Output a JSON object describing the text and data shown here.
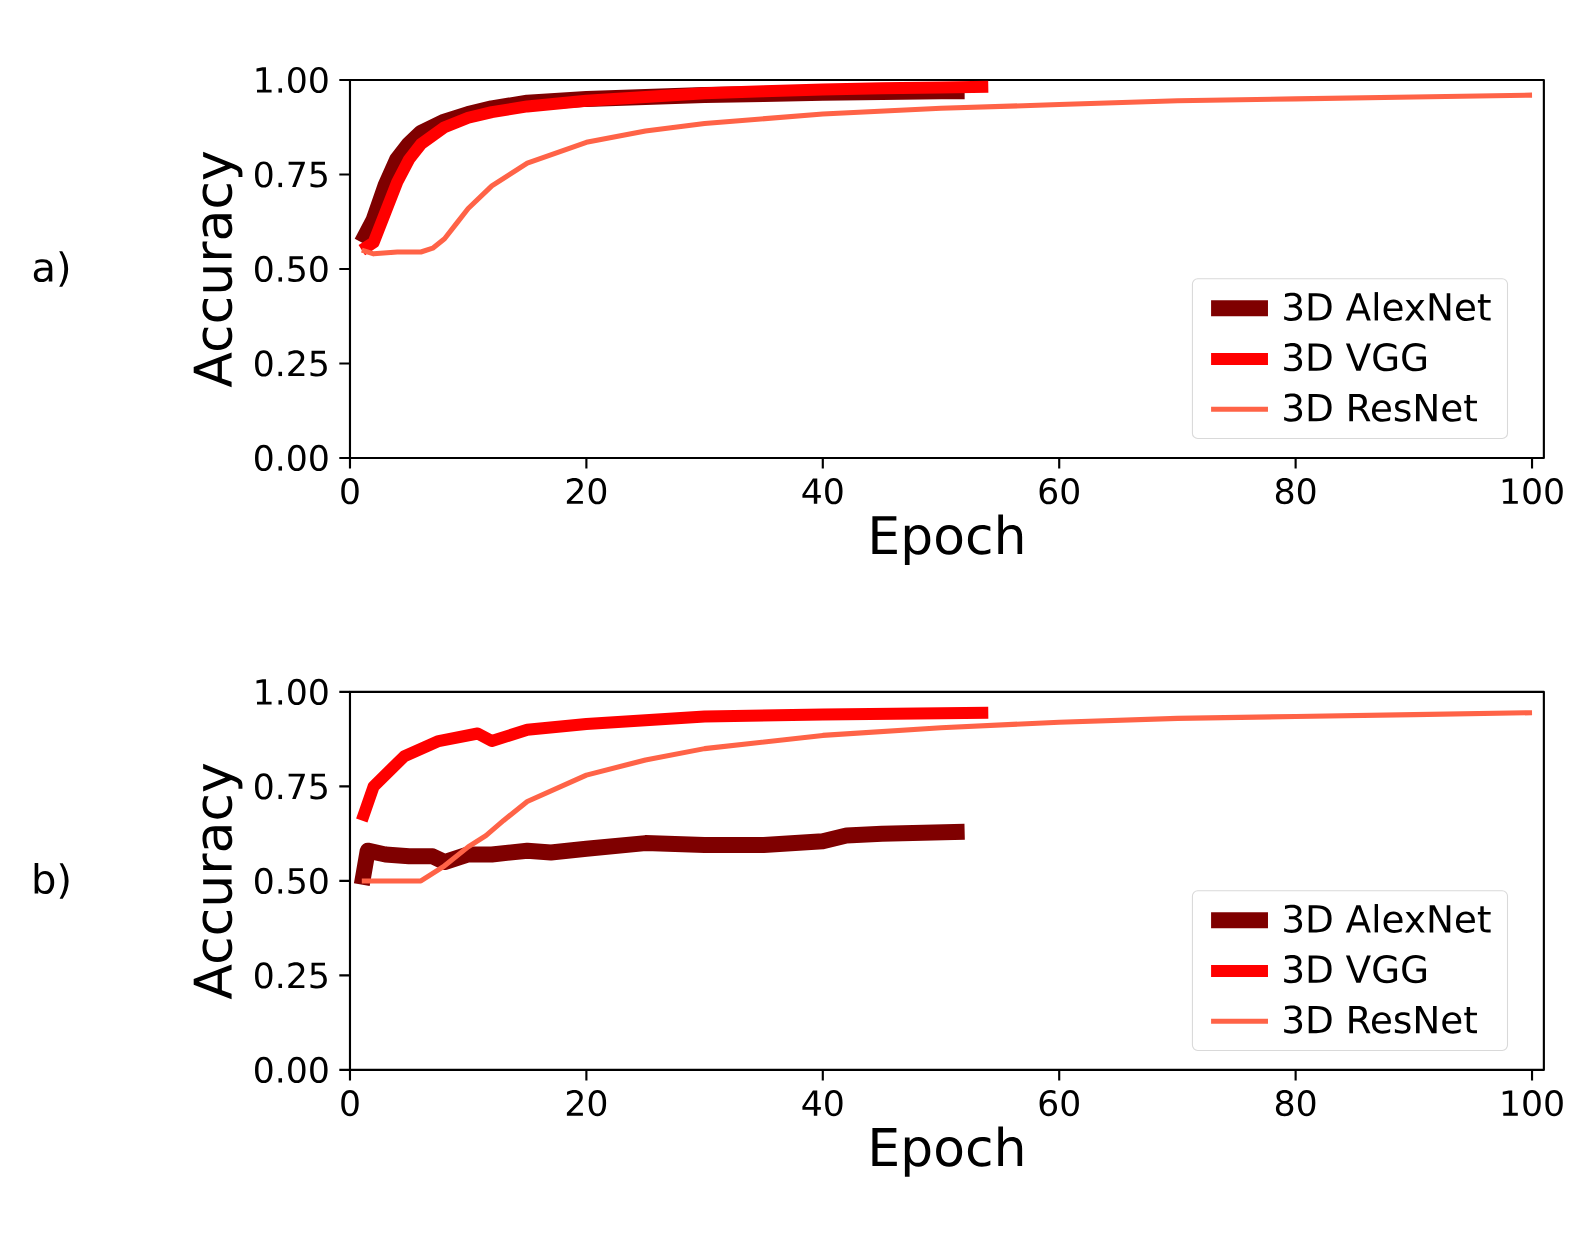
{
  "chart_data": [
    {
      "type": "line",
      "xlabel": "Epoch",
      "ylabel": "Accuracy",
      "annotations": [
        "a)"
      ],
      "xlim": [
        0,
        101
      ],
      "ylim": [
        0,
        1
      ],
      "xticks": [
        0,
        20,
        40,
        60,
        80,
        100
      ],
      "yticks": [
        {
          "value": 0,
          "label": "0.00"
        },
        {
          "value": 0.25,
          "label": "0.25"
        },
        {
          "value": 0.5,
          "label": "0.50"
        },
        {
          "value": 0.75,
          "label": "0.75"
        },
        {
          "value": 1,
          "label": "1.00"
        }
      ],
      "legend": "bottom right",
      "grid": false,
      "marker": "none",
      "line_style": "solid",
      "series": [
        {
          "name": "3D AlexNet",
          "color": "#7f0000",
          "x": [
            1,
            2,
            3,
            4,
            5,
            6,
            8,
            10,
            12,
            15,
            20,
            25,
            30,
            35,
            40,
            45,
            50,
            52
          ],
          "values": [
            0.57,
            0.63,
            0.72,
            0.79,
            0.83,
            0.86,
            0.89,
            0.91,
            0.925,
            0.94,
            0.95,
            0.955,
            0.96,
            0.963,
            0.966,
            0.968,
            0.97,
            0.97
          ]
        },
        {
          "name": "3D VGG",
          "color": "#ff0000",
          "x": [
            1,
            2,
            3,
            4,
            5,
            6,
            8,
            10,
            12,
            15,
            20,
            25,
            30,
            35,
            40,
            45,
            50,
            54
          ],
          "values": [
            0.55,
            0.57,
            0.65,
            0.73,
            0.79,
            0.83,
            0.875,
            0.9,
            0.915,
            0.93,
            0.945,
            0.955,
            0.965,
            0.97,
            0.975,
            0.978,
            0.98,
            0.982
          ]
        },
        {
          "name": "3D ResNet",
          "color": "#ff6347",
          "x": [
            1,
            2,
            4,
            6,
            7,
            8,
            9,
            10,
            12,
            15,
            20,
            25,
            30,
            40,
            50,
            60,
            70,
            80,
            90,
            100
          ],
          "values": [
            0.55,
            0.54,
            0.545,
            0.545,
            0.555,
            0.58,
            0.62,
            0.66,
            0.72,
            0.78,
            0.835,
            0.865,
            0.885,
            0.91,
            0.925,
            0.935,
            0.945,
            0.95,
            0.955,
            0.96
          ]
        }
      ]
    },
    {
      "type": "line",
      "xlabel": "Epoch",
      "ylabel": "Accuracy",
      "annotations": [
        "b)"
      ],
      "xlim": [
        0,
        101
      ],
      "ylim": [
        0,
        1
      ],
      "xticks": [
        0,
        20,
        40,
        60,
        80,
        100
      ],
      "yticks": [
        {
          "value": 0,
          "label": "0.00"
        },
        {
          "value": 0.25,
          "label": "0.25"
        },
        {
          "value": 0.5,
          "label": "0.50"
        },
        {
          "value": 0.75,
          "label": "0.75"
        },
        {
          "value": 1,
          "label": "1.00"
        }
      ],
      "legend": "bottom right",
      "grid": false,
      "marker": "none",
      "line_style": "solid",
      "series": [
        {
          "name": "3D AlexNet",
          "color": "#7f0000",
          "x": [
            1,
            1.5,
            3,
            5,
            7,
            8,
            10,
            12,
            15,
            17,
            20,
            25,
            30,
            35,
            40,
            42,
            45,
            52
          ],
          "values": [
            0.49,
            0.58,
            0.57,
            0.565,
            0.565,
            0.55,
            0.57,
            0.57,
            0.58,
            0.575,
            0.585,
            0.6,
            0.595,
            0.595,
            0.605,
            0.62,
            0.625,
            0.63
          ]
        },
        {
          "name": "3D VGG",
          "color": "#ff0000",
          "x": [
            1,
            2,
            4.6,
            7.5,
            10.8,
            12,
            15,
            20,
            30,
            40,
            54
          ],
          "values": [
            0.66,
            0.75,
            0.83,
            0.87,
            0.89,
            0.87,
            0.9,
            0.915,
            0.935,
            0.94,
            0.945
          ]
        },
        {
          "name": "3D ResNet",
          "color": "#ff6347",
          "x": [
            1,
            6,
            8,
            10,
            11.5,
            13,
            15,
            20,
            25,
            30,
            40,
            50,
            60,
            70,
            80,
            90,
            100
          ],
          "values": [
            0.5,
            0.5,
            0.54,
            0.59,
            0.62,
            0.66,
            0.71,
            0.78,
            0.82,
            0.85,
            0.885,
            0.905,
            0.92,
            0.93,
            0.935,
            0.94,
            0.945
          ]
        }
      ]
    }
  ]
}
